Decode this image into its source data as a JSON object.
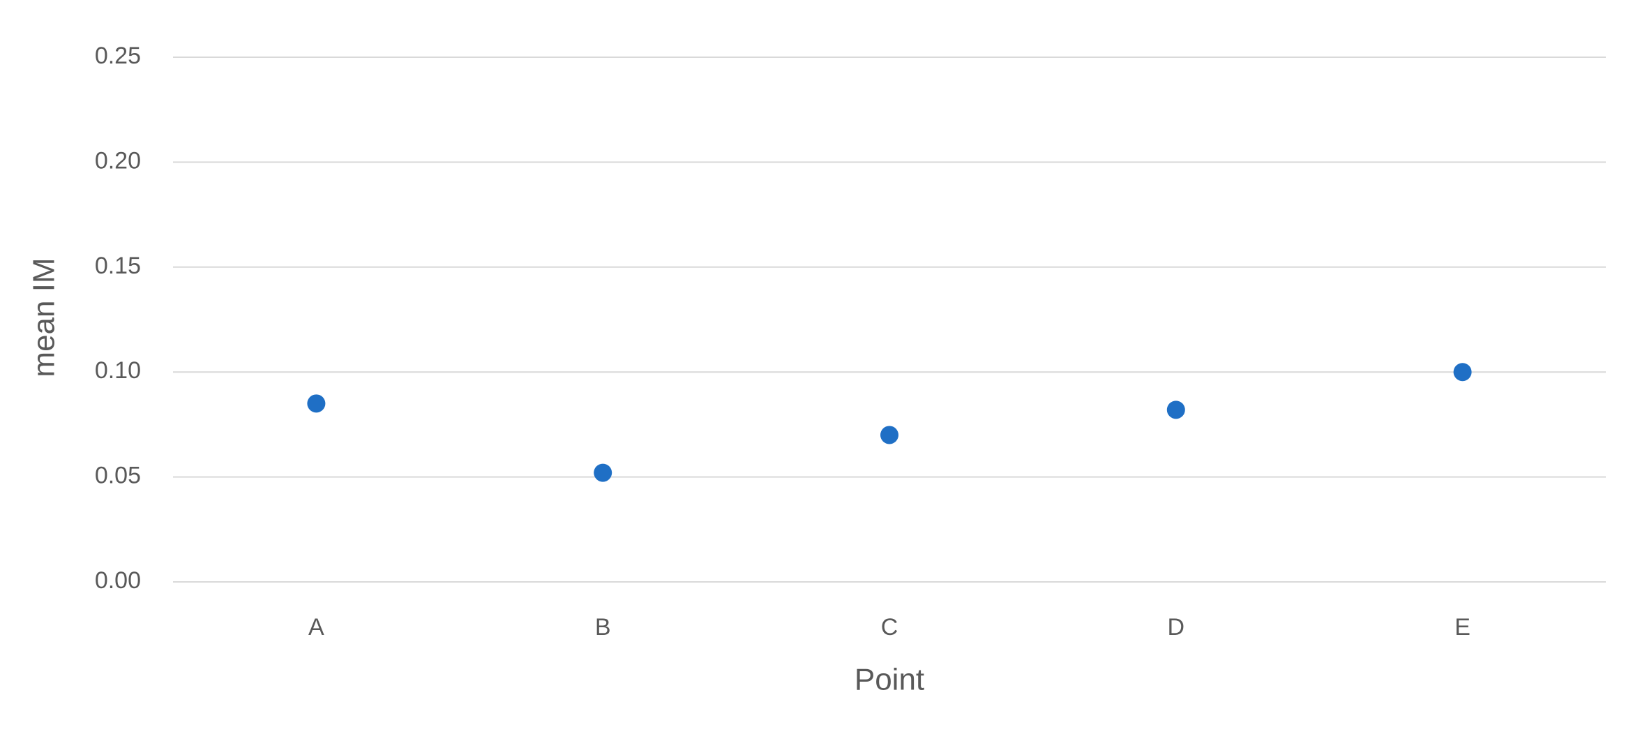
{
  "chart_data": {
    "type": "scatter",
    "x_label": "Point",
    "y_label": "mean IM",
    "categories": [
      "A",
      "B",
      "C",
      "D",
      "E"
    ],
    "values": [
      0.085,
      0.052,
      0.07,
      0.082,
      0.1
    ],
    "color": "#1f6fc5",
    "ylim": [
      0,
      0.25
    ],
    "yticks": [
      {
        "value": 0,
        "label": "0.00"
      },
      0.05,
      {
        "value": 0.1,
        "label": "0.10"
      },
      0.15,
      {
        "value": 0.2,
        "label": "0.20"
      },
      0.25
    ],
    "grid": true
  }
}
